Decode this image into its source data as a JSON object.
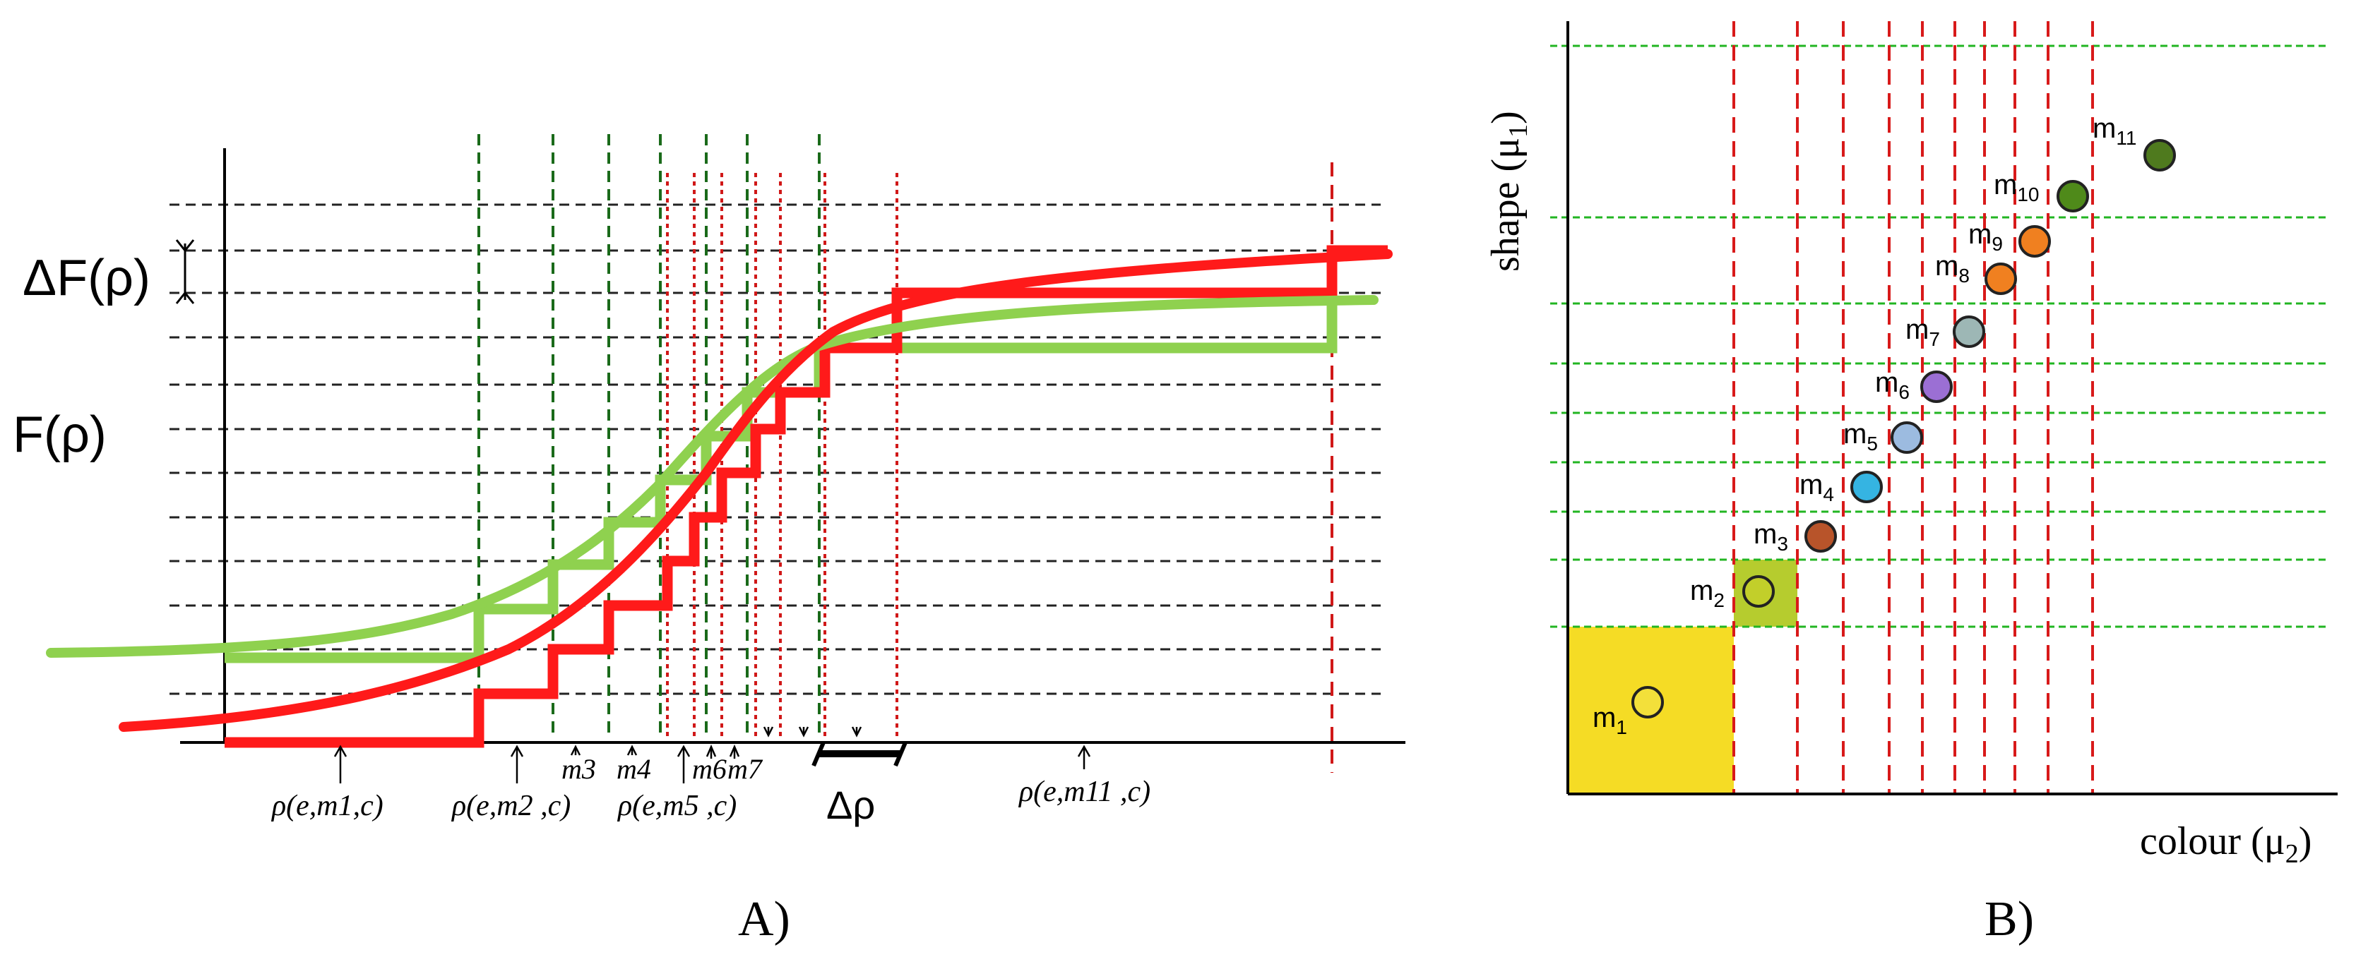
{
  "panel_a": {
    "caption": "A)",
    "y_label": "F(ρ)",
    "delta_f_label": "ΔF(ρ)",
    "delta_rho_label": "Δρ",
    "rho_labels": {
      "m1": "ρ(e,m1,c)",
      "m2": "ρ(e,m2 ,c)",
      "m5": "ρ(e,m5 ,c)",
      "m11": "ρ(e,m11 ,c)"
    },
    "m_labels": {
      "m3": "m3",
      "m4": "m4",
      "m6": "m6",
      "m7": "m7"
    },
    "colors": {
      "red": "#ff1a1a",
      "green": "#8fd14f",
      "dash_green": "#1a6a1a",
      "dash_red": "#d01818",
      "grid": "#222222"
    }
  },
  "panel_b": {
    "caption": "B)",
    "x_label": "colour (μ2)",
    "y_label": "shape (μ1)",
    "points": [
      {
        "label": "m1",
        "color": "#f3e03a"
      },
      {
        "label": "m2",
        "color": "#c2cf2a"
      },
      {
        "label": "m3",
        "color": "#b8542a"
      },
      {
        "label": "m4",
        "color": "#35b4e2"
      },
      {
        "label": "m5",
        "color": "#9cbbe0"
      },
      {
        "label": "m6",
        "color": "#9b6fd4"
      },
      {
        "label": "m7",
        "color": "#9db7b5"
      },
      {
        "label": "m8",
        "color": "#f08020"
      },
      {
        "label": "m9",
        "color": "#f08020"
      },
      {
        "label": "m10",
        "color": "#4f8a1a"
      },
      {
        "label": "m11",
        "color": "#4f7a1e"
      }
    ],
    "colors": {
      "yellow_box": "#f5dc25",
      "green_box": "#b6cc2e",
      "grid_green": "#22b522",
      "grid_red": "#d81a1a"
    }
  }
}
